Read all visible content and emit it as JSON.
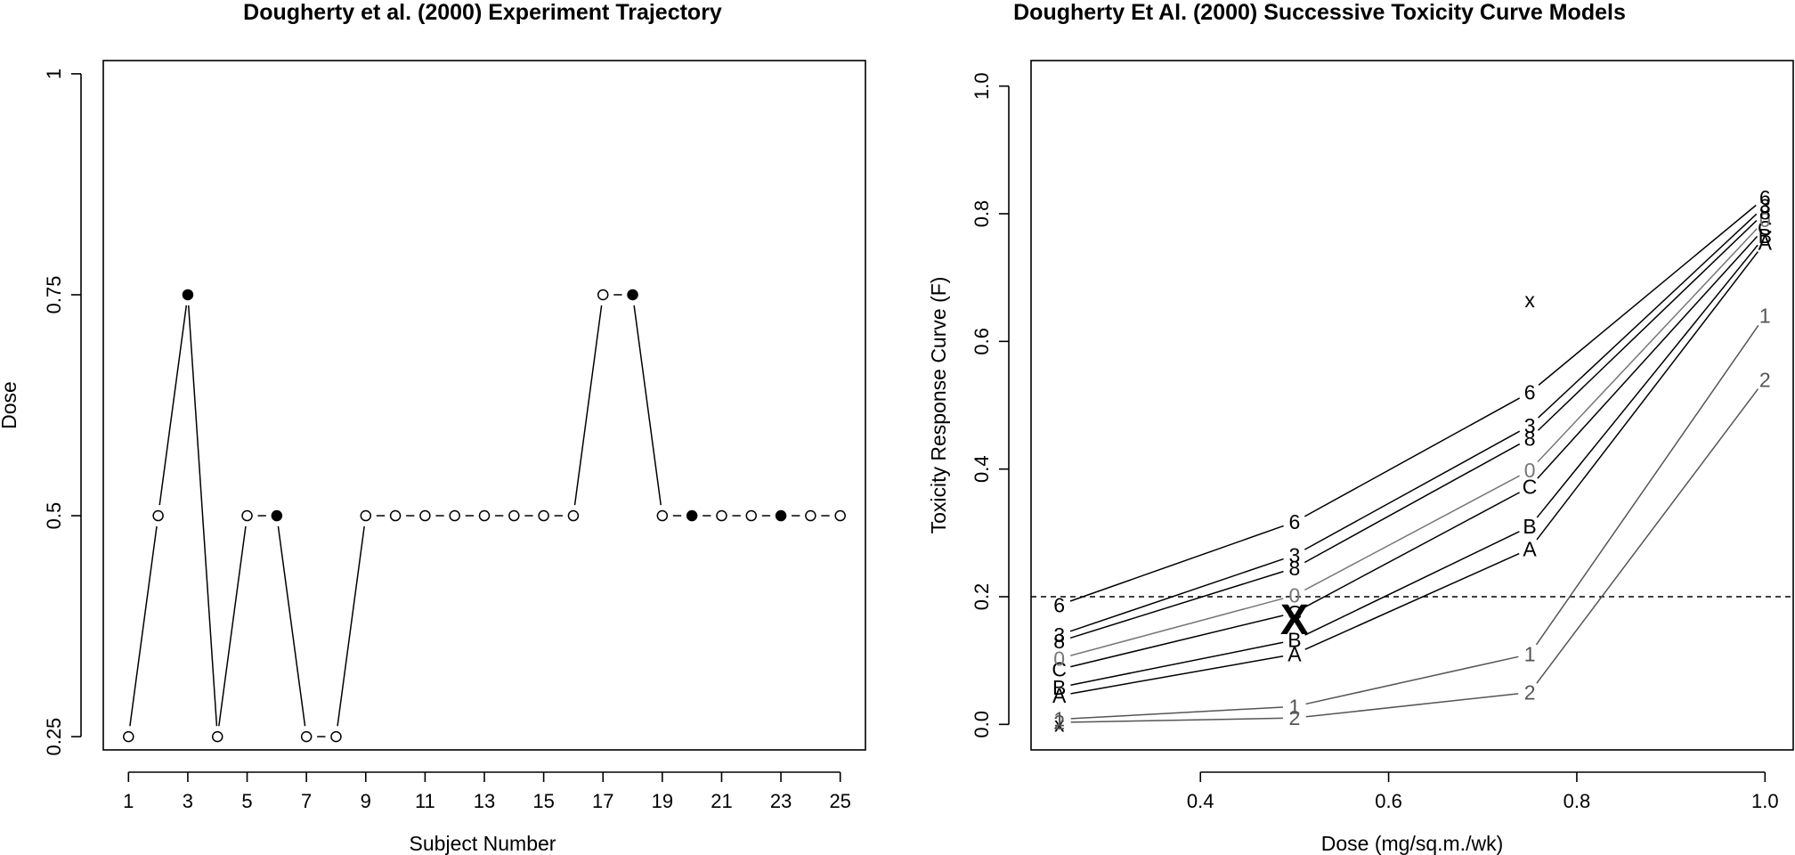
{
  "chart_data": [
    {
      "type": "line",
      "title": "Dougherty et al. (2000) Experiment Trajectory",
      "xlabel": "Subject Number",
      "ylabel": "Dose",
      "xlim": [
        0.15,
        25.85
      ],
      "ylim": [
        0.235,
        1.015
      ],
      "x_ticks": [
        1,
        3,
        5,
        7,
        9,
        11,
        13,
        15,
        17,
        19,
        21,
        23,
        25
      ],
      "x_tick_labels": [
        "1",
        "3",
        "5",
        "7",
        "9",
        "11",
        "13",
        "15",
        "17",
        "19",
        "21",
        "23",
        "25"
      ],
      "y_ticks": [
        0.25,
        0.5,
        0.75,
        1
      ],
      "y_tick_labels": [
        "0.25",
        "0.5",
        "0.75",
        "1"
      ],
      "legend": "none",
      "marker_legend_meaning": "open circle = no toxicity, filled circle = toxicity",
      "x": [
        1,
        2,
        3,
        4,
        5,
        6,
        7,
        8,
        9,
        10,
        11,
        12,
        13,
        14,
        15,
        16,
        17,
        18,
        19,
        20,
        21,
        22,
        23,
        24,
        25
      ],
      "dose": [
        0.25,
        0.5,
        0.75,
        0.25,
        0.5,
        0.5,
        0.25,
        0.25,
        0.5,
        0.5,
        0.5,
        0.5,
        0.5,
        0.5,
        0.5,
        0.5,
        0.75,
        0.75,
        0.5,
        0.5,
        0.5,
        0.5,
        0.5,
        0.5,
        0.5
      ],
      "toxicity": [
        0,
        0,
        1,
        0,
        0,
        1,
        0,
        0,
        0,
        0,
        0,
        0,
        0,
        0,
        0,
        0,
        0,
        1,
        0,
        1,
        0,
        0,
        1,
        0,
        0
      ]
    },
    {
      "type": "line",
      "title": "Dougherty Et Al. (2000) Successive Toxicity Curve Models",
      "xlabel": "Dose (mg/sq.m./wk)",
      "ylabel": "Toxicity Response Curve (F)",
      "xlim": [
        0.22,
        1.03
      ],
      "ylim": [
        -0.04,
        1.04
      ],
      "x_ticks": [
        0.4,
        0.6,
        0.8,
        1.0
      ],
      "x_tick_labels": [
        "0.4",
        "0.6",
        "0.8",
        "1.0"
      ],
      "y_ticks": [
        0,
        0.2,
        0.4,
        0.6,
        0.8,
        1.0
      ],
      "y_tick_labels": [
        "0.0",
        "0.2",
        "0.4",
        "0.6",
        "0.8",
        "1.0"
      ],
      "target_line": 0.2,
      "doses": [
        0.25,
        0.5,
        0.75,
        1.0
      ],
      "series": [
        {
          "label": "x",
          "values": [
            0.0,
            0.165,
            0.665,
            null
          ],
          "color": "#000000"
        },
        {
          "label": "2",
          "values": [
            0.003,
            0.01,
            0.05,
            0.54
          ],
          "color": "#555555"
        },
        {
          "label": "1",
          "values": [
            0.008,
            0.028,
            0.11,
            0.64
          ],
          "color": "#555555"
        },
        {
          "label": "A",
          "values": [
            0.045,
            0.11,
            0.275,
            0.755
          ],
          "color": "#000000"
        },
        {
          "label": "B",
          "values": [
            0.058,
            0.132,
            0.31,
            0.765
          ],
          "color": "#000000"
        },
        {
          "label": "C",
          "values": [
            0.086,
            0.175,
            0.372,
            0.778
          ],
          "color": "#000000"
        },
        {
          "label": "0",
          "values": [
            0.103,
            0.202,
            0.398,
            0.79
          ],
          "color": "#777777"
        },
        {
          "label": "8",
          "values": [
            0.13,
            0.245,
            0.448,
            0.802
          ],
          "color": "#000000"
        },
        {
          "label": "3",
          "values": [
            0.14,
            0.265,
            0.468,
            0.812
          ],
          "color": "#000000"
        },
        {
          "label": "6",
          "values": [
            0.187,
            0.317,
            0.52,
            0.825
          ],
          "color": "#000000"
        }
      ],
      "highlight": {
        "label": "X",
        "x": 0.5,
        "y": 0.165
      }
    }
  ]
}
